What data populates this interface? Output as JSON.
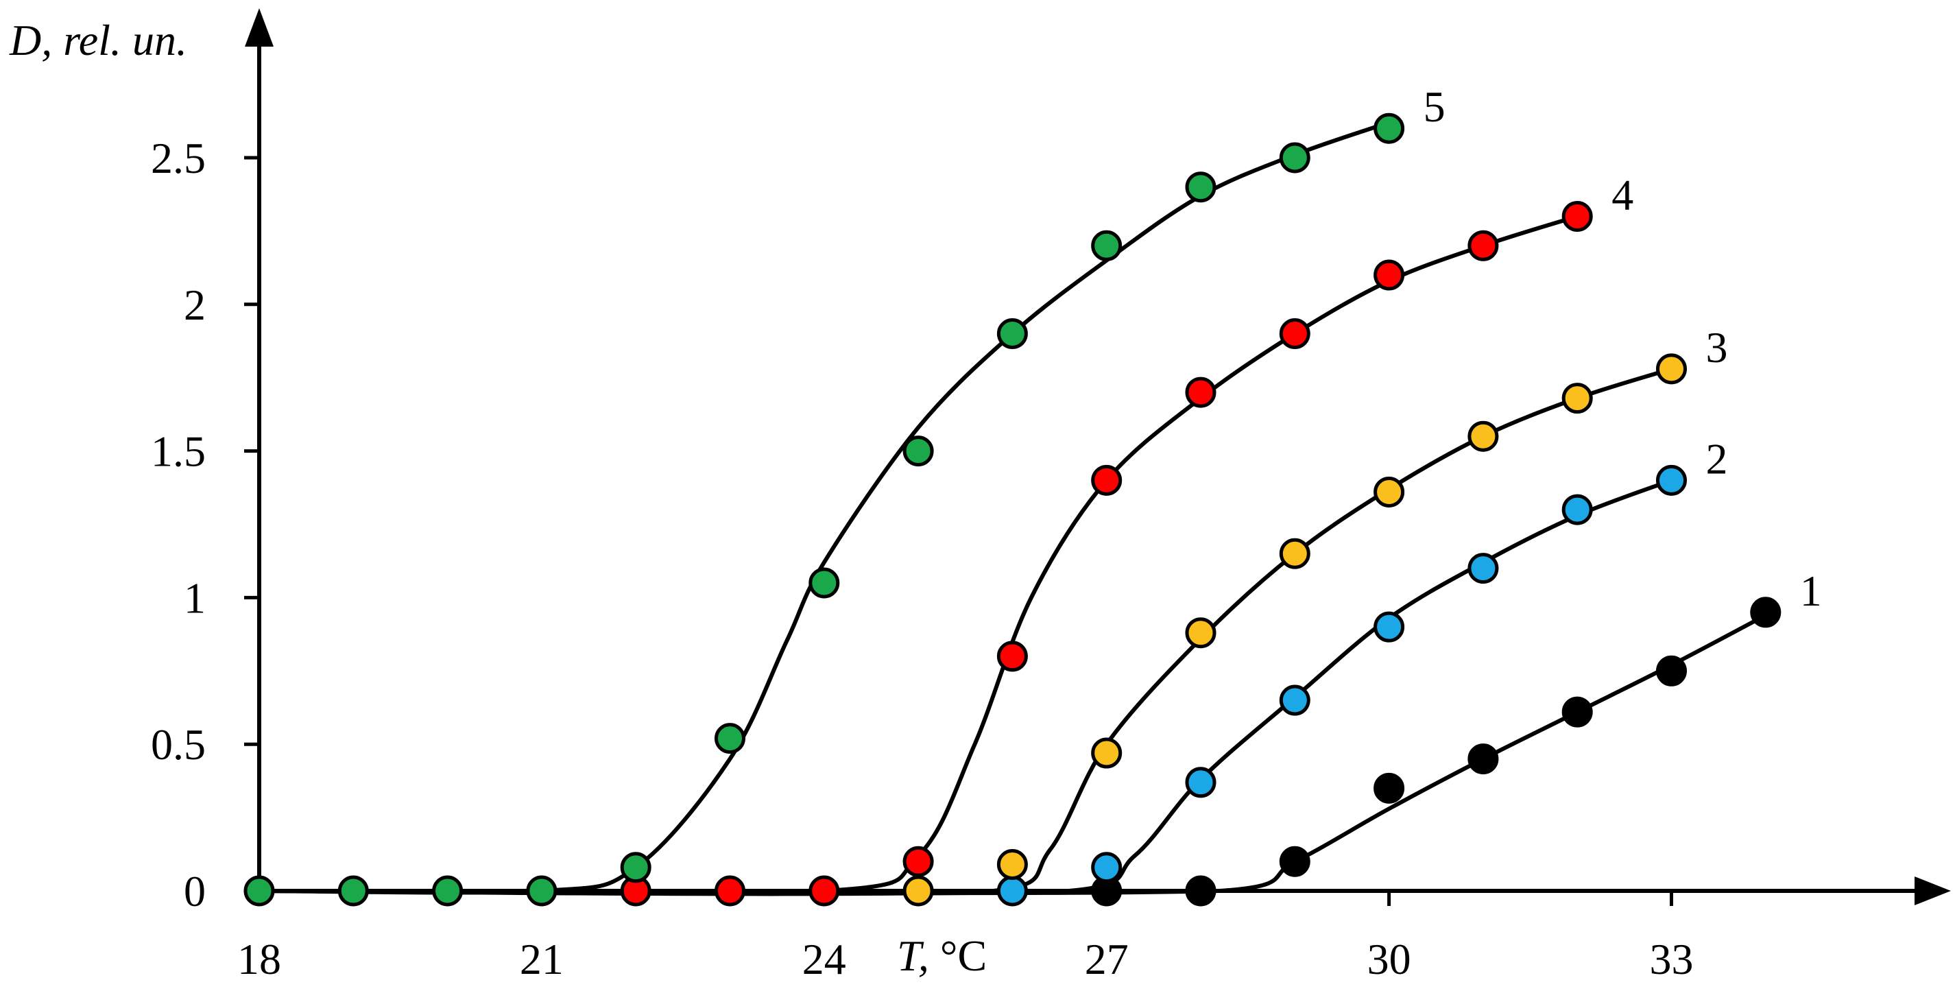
{
  "chart_data": {
    "type": "scatter",
    "title": "",
    "xlabel_var": "T,",
    "xlabel_unit": " °C",
    "ylabel": "D, rel. un.",
    "xlim": [
      18,
      34.8
    ],
    "ylim": [
      0,
      2.75
    ],
    "x_ticks": [
      18,
      21,
      24,
      27,
      30,
      33
    ],
    "y_ticks": [
      0,
      0.5,
      1,
      1.5,
      2,
      2.5
    ],
    "y_tick_labels": [
      "0",
      "0.5",
      "1",
      "1.5",
      "2",
      "2.5"
    ],
    "grid": false,
    "legend": "none",
    "series": [
      {
        "name": "1",
        "color": "#000000",
        "x": [
          27,
          28,
          29,
          30,
          31,
          32,
          33,
          34
        ],
        "y": [
          0,
          0,
          0.1,
          0.35,
          0.45,
          0.61,
          0.75,
          0.95
        ],
        "curve_x": [
          18,
          28.2,
          29,
          30,
          31,
          32,
          33,
          34
        ],
        "curve_y": [
          0,
          0,
          0.1,
          0.28,
          0.45,
          0.61,
          0.77,
          0.94
        ]
      },
      {
        "name": "2",
        "color": "#1CA8E6",
        "x": [
          26,
          27,
          28,
          29,
          30,
          31,
          32,
          33
        ],
        "y": [
          0,
          0.08,
          0.37,
          0.65,
          0.9,
          1.1,
          1.3,
          1.4
        ],
        "curve_x": [
          18,
          26.6,
          27.3,
          28,
          29,
          30,
          31,
          32,
          33
        ],
        "curve_y": [
          0,
          0,
          0.12,
          0.38,
          0.66,
          0.93,
          1.12,
          1.28,
          1.4
        ]
      },
      {
        "name": "3",
        "color": "#FBBF1D",
        "x": [
          25,
          26,
          27,
          28,
          29,
          30,
          31,
          32,
          33
        ],
        "y": [
          0,
          0.09,
          0.47,
          0.88,
          1.15,
          1.36,
          1.55,
          1.68,
          1.78
        ],
        "curve_x": [
          18,
          25.8,
          26.4,
          27,
          28,
          29,
          30,
          31,
          32,
          33
        ],
        "curve_y": [
          0,
          0,
          0.14,
          0.5,
          0.86,
          1.15,
          1.37,
          1.55,
          1.68,
          1.78
        ]
      },
      {
        "name": "4",
        "color": "#FF0000",
        "x": [
          22,
          23,
          24,
          25,
          26,
          27,
          28,
          29,
          30,
          31,
          32
        ],
        "y": [
          0,
          0,
          0,
          0.1,
          0.8,
          1.4,
          1.7,
          1.9,
          2.1,
          2.2,
          2.3
        ],
        "curve_x": [
          18,
          24,
          25,
          25.6,
          26.2,
          27,
          28,
          29,
          30,
          31,
          32
        ],
        "curve_y": [
          0,
          0,
          0.12,
          0.5,
          1.0,
          1.4,
          1.68,
          1.9,
          2.08,
          2.2,
          2.3
        ]
      },
      {
        "name": "5",
        "color": "#1BA84A",
        "x": [
          18,
          19,
          20,
          21,
          22,
          23,
          24,
          25,
          26,
          27,
          28,
          29,
          30
        ],
        "y": [
          0,
          0,
          0,
          0,
          0.08,
          0.52,
          1.05,
          1.5,
          1.9,
          2.2,
          2.4,
          2.5,
          2.6
        ],
        "curve_x": [
          18,
          21,
          22,
          23,
          23.6,
          24,
          25,
          26,
          27,
          28,
          29,
          30
        ],
        "curve_y": [
          0,
          0,
          0.08,
          0.45,
          0.85,
          1.12,
          1.58,
          1.9,
          2.15,
          2.37,
          2.51,
          2.62
        ]
      }
    ]
  }
}
